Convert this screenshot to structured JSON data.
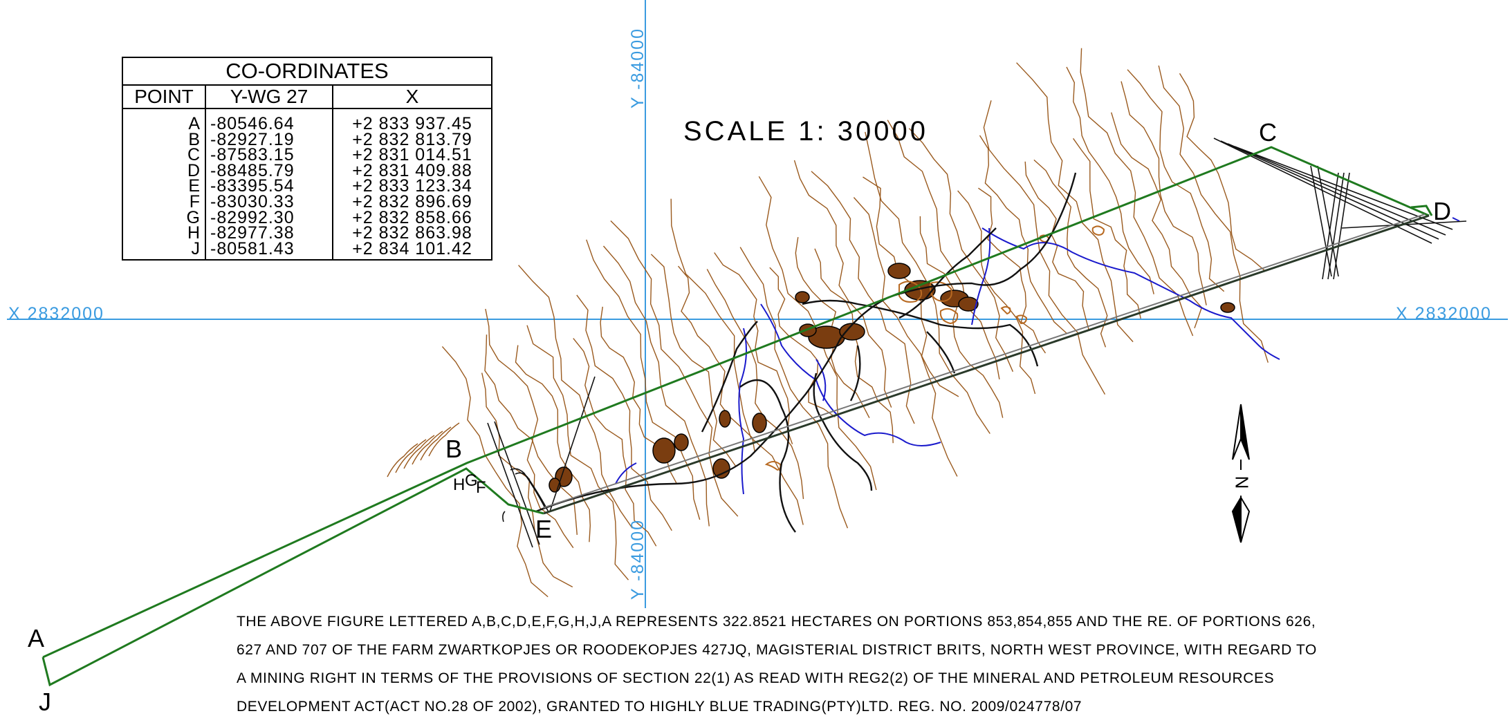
{
  "table": {
    "title": "CO-ORDINATES",
    "headers": [
      "POINT",
      "Y-WG 27",
      "X"
    ],
    "rows": [
      {
        "point": "A",
        "y": "-80546.64",
        "x": "+2 833 937.45"
      },
      {
        "point": "B",
        "y": "-82927.19",
        "x": "+2 832 813.79"
      },
      {
        "point": "C",
        "y": "-87583.15",
        "x": "+2 831 014.51"
      },
      {
        "point": "D",
        "y": "-88485.79",
        "x": "+2 831 409.88"
      },
      {
        "point": "E",
        "y": "-83395.54",
        "x": "+2 833 123.34"
      },
      {
        "point": "F",
        "y": "-83030.33",
        "x": "+2 832 896.69"
      },
      {
        "point": "G",
        "y": "-82992.30",
        "x": "+2 832 858.66"
      },
      {
        "point": "H",
        "y": "-82977.38",
        "x": "+2 832 863.98"
      },
      {
        "point": "J",
        "y": "-80581.43",
        "x": "+2 834 101.42"
      }
    ]
  },
  "scale": "SCALE 1: 30000",
  "grid": {
    "x_label_left": "X 2832000",
    "x_label_right": "X 2832000",
    "y_label_top": "Y -84000",
    "y_label_bottom": "Y -84000"
  },
  "points": {
    "A": "A",
    "B": "B",
    "C": "C",
    "D": "D",
    "E": "E",
    "F": "F",
    "G": "G",
    "H": "H",
    "J": "J"
  },
  "north_arrow": {
    "letter": "N"
  },
  "description": [
    "THE ABOVE FIGURE LETTERED A,B,C,D,E,F,G,H,J,A REPRESENTS 322.8521 HECTARES ON PORTIONS 853,854,855 AND THE RE. OF PORTIONS 626,",
    "627 AND 707 OF THE FARM ZWARTKOPJES OR ROODEKOPJES 427JQ, MAGISTERIAL DISTRICT BRITS, NORTH WEST PROVINCE, WITH REGARD TO",
    "A MINING RIGHT IN TERMS OF THE PROVISIONS OF SECTION 22(1) AS READ WITH REG2(2) OF THE MINERAL AND PETROLEUM RESOURCES",
    "DEVELOPMENT ACT(ACT NO.28 OF 2002), GRANTED TO HIGHLY BLUE TRADING(PTY)LTD. REG. NO. 2009/024778/07"
  ],
  "colors": {
    "grid": "#3a9be0",
    "boundary": "#1f7a1f",
    "contour": "#9a5a1e",
    "river": "#1a1acc",
    "road": "#111111"
  }
}
